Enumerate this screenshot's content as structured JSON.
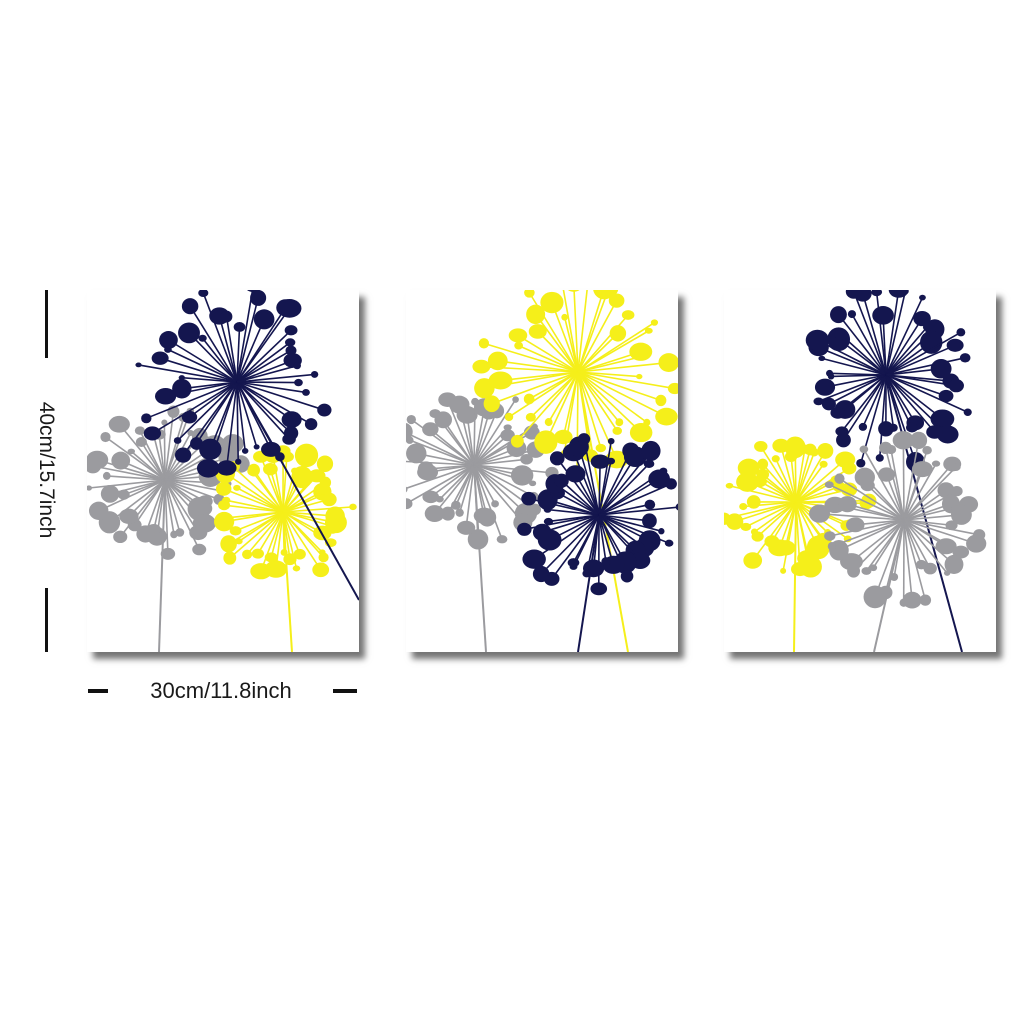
{
  "dimensions": {
    "height_label": "40cm/15.7inch",
    "width_label": "30cm/11.8inch"
  },
  "colors": {
    "navy": "#14164f",
    "yellow": "#f5ef1a",
    "gray": "#9b9b9f",
    "shadow": "#2b2b2b"
  },
  "panels": [
    {
      "name": "canvas-panel-left"
    },
    {
      "name": "canvas-panel-middle"
    },
    {
      "name": "canvas-panel-right"
    }
  ]
}
